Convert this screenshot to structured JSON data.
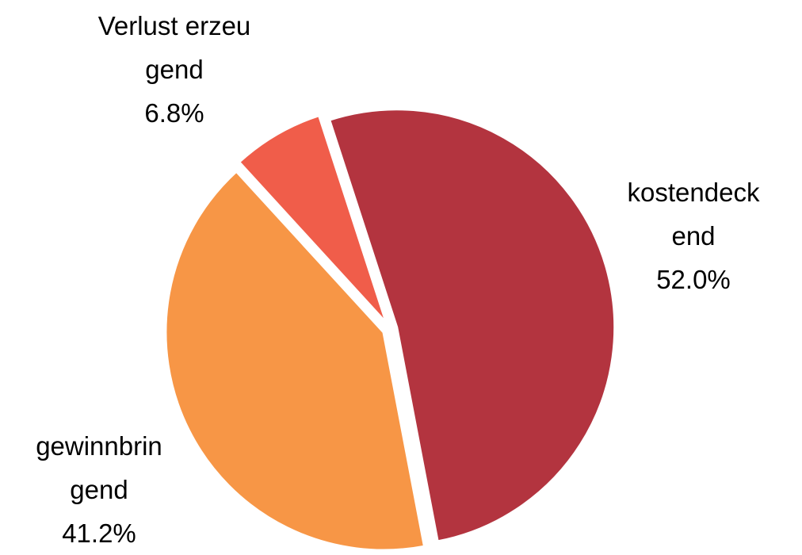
{
  "chart_data": {
    "type": "pie",
    "categories": [
      "kostendeckend",
      "gewinnbringend",
      "Verlust erzeugend"
    ],
    "values": [
      52.0,
      41.2,
      6.8
    ],
    "value_labels": [
      "52.0%",
      "41.2%",
      "6.8%"
    ],
    "colors": [
      "#b3343f",
      "#f79646",
      "#f05d4a"
    ]
  }
}
